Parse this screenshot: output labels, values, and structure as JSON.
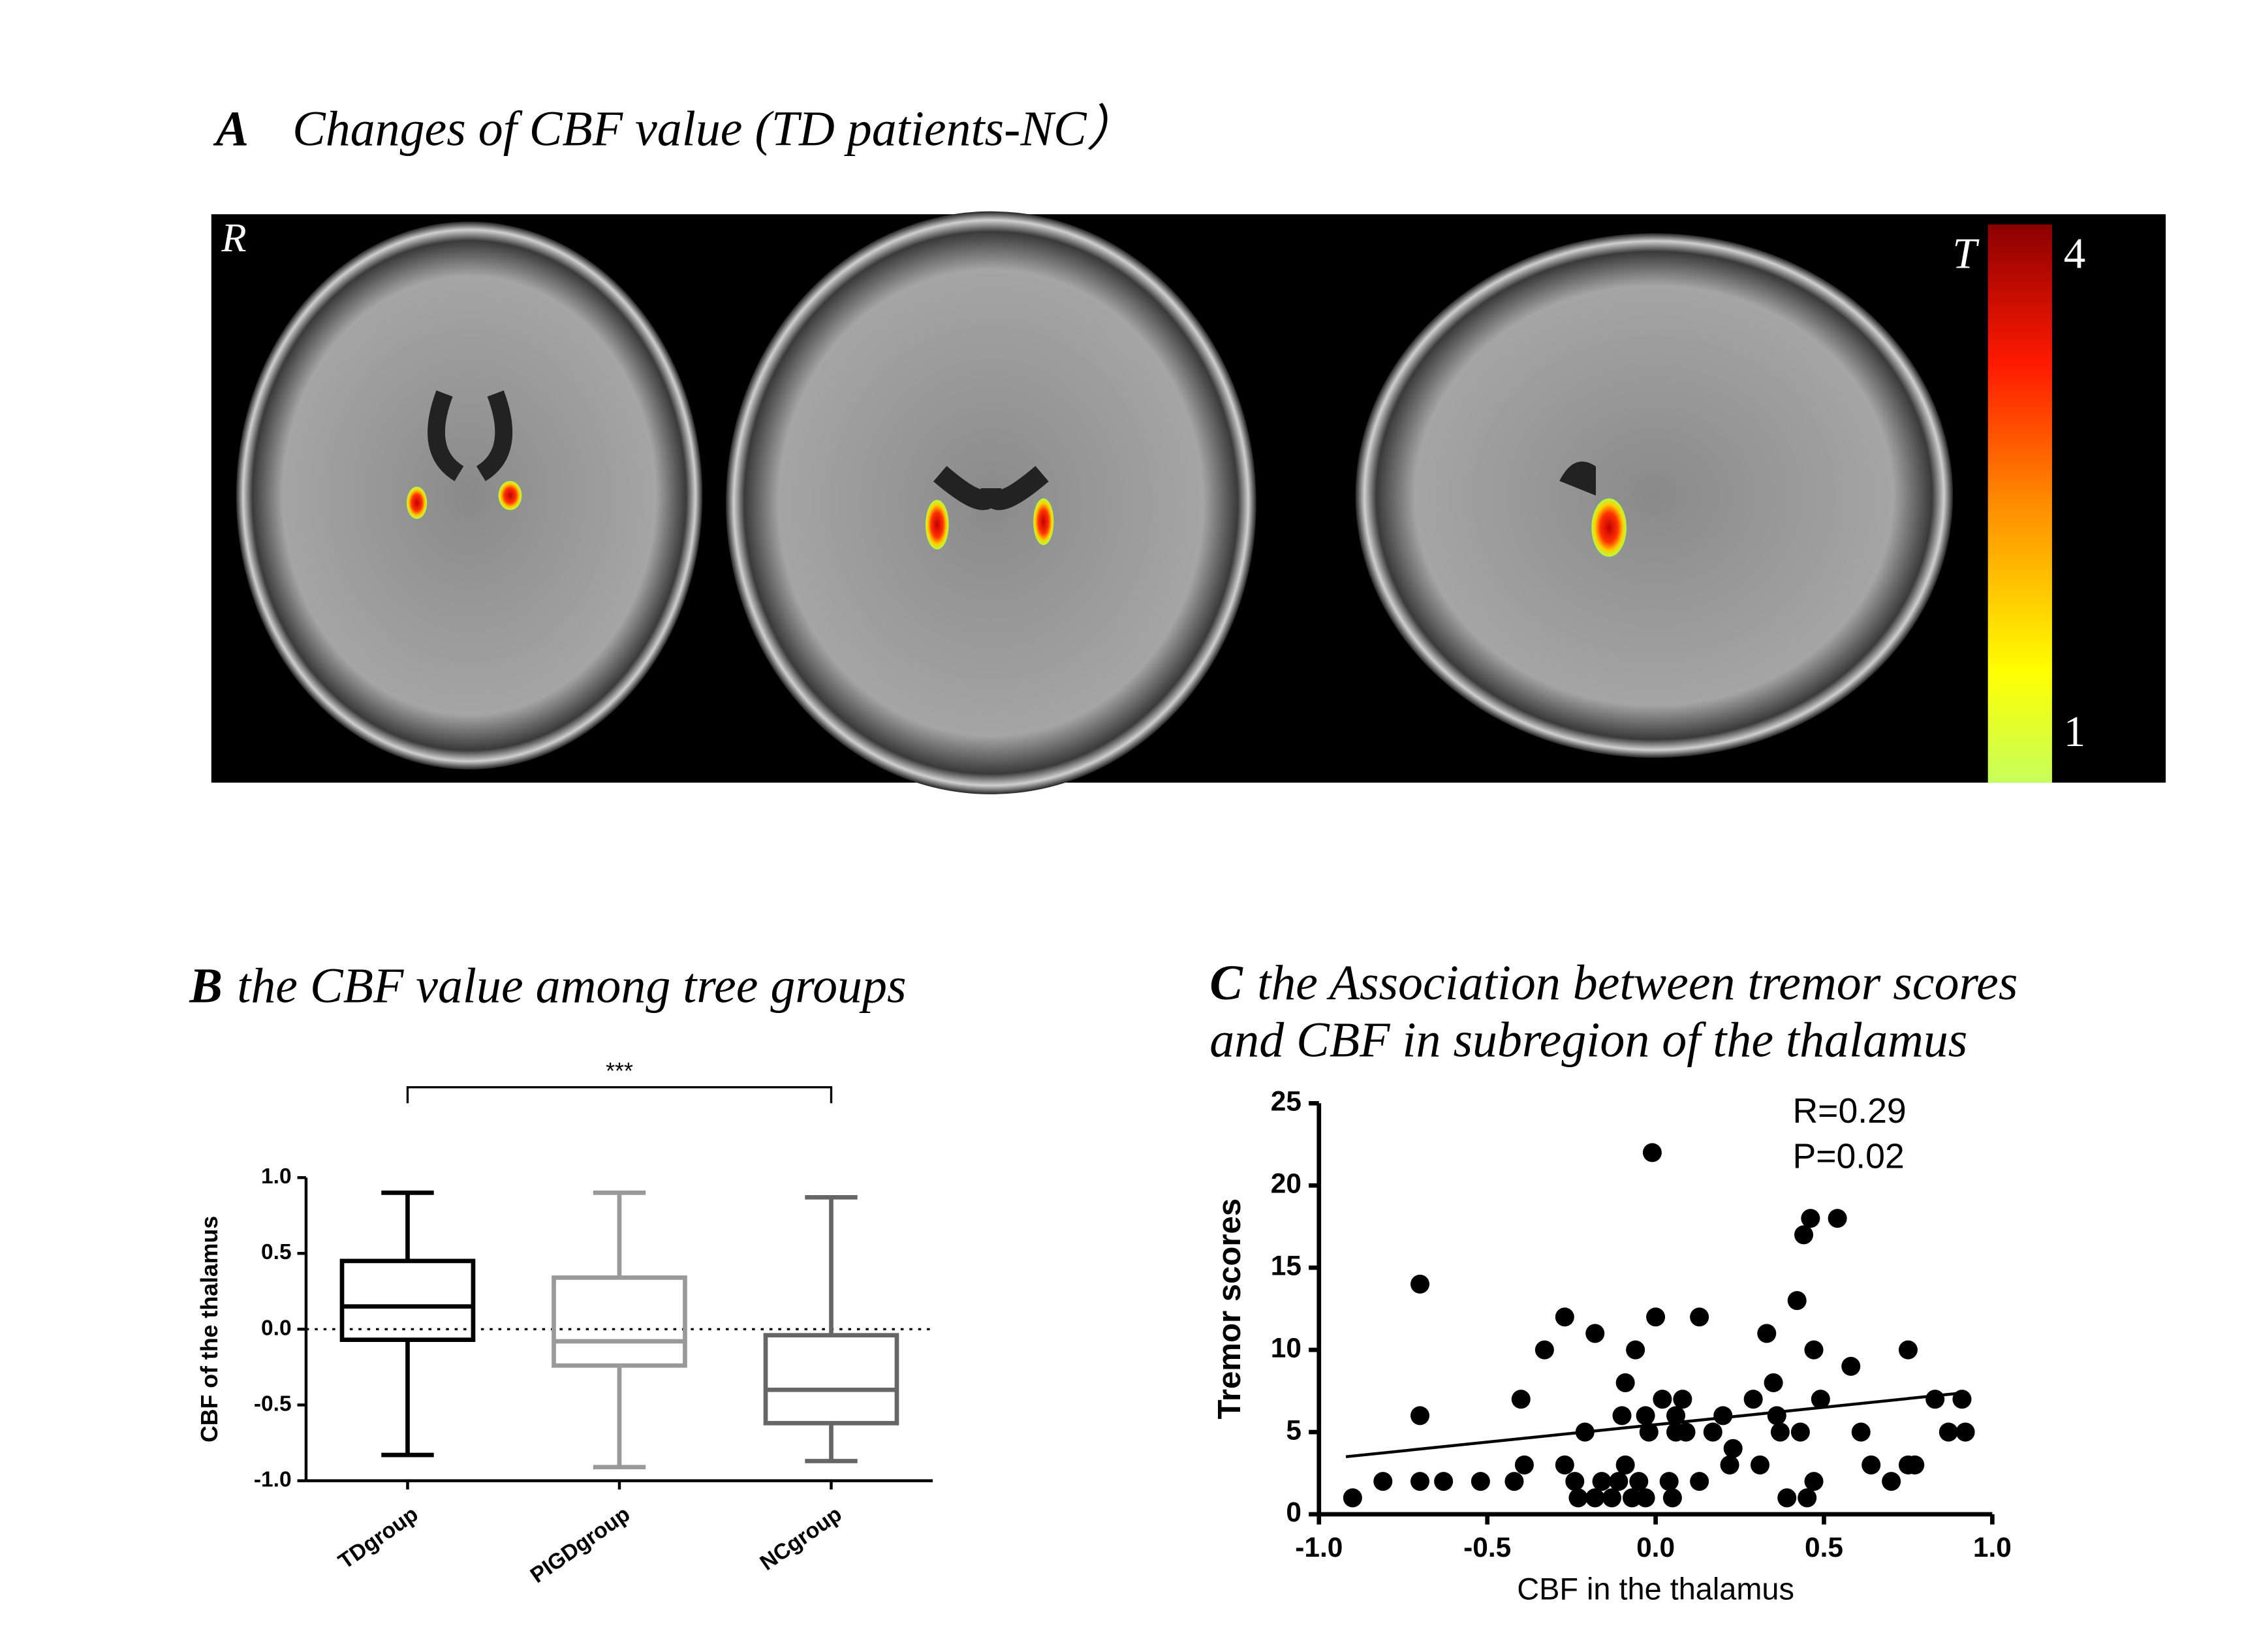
{
  "chart_data": [
    {
      "type": "image",
      "panel_label": "A",
      "title": "Changes of CBF value (TD patients-NC）",
      "orientation": "R",
      "colorbar": {
        "label": "T",
        "lim": [
          1,
          4
        ],
        "ticks": [
          1,
          4
        ]
      }
    },
    {
      "type": "box",
      "panel_label": "B",
      "title": "the CBF value among tree groups",
      "ylabel": "CBF of the thalamus",
      "categories": [
        "TDgroup",
        "PIGDgroup",
        "NCgroup"
      ],
      "colors": [
        "#000000",
        "#999999",
        "#666666"
      ],
      "min": [
        -0.83,
        -0.91,
        -0.87
      ],
      "q1": [
        -0.07,
        -0.24,
        -0.62
      ],
      "median": [
        0.15,
        -0.08,
        -0.4
      ],
      "q3": [
        0.45,
        0.34,
        -0.04
      ],
      "max": [
        0.9,
        0.9,
        0.87
      ],
      "ylim": [
        -1,
        1
      ],
      "yticks": [
        {
          "value": 1,
          "label": "1.0"
        },
        0.5,
        {
          "value": 0,
          "label": "0.0"
        },
        -0.5,
        {
          "value": -1,
          "label": "-1.0"
        }
      ],
      "reference_line": 0,
      "significance": "***"
    },
    {
      "type": "scatter",
      "panel_label": "C",
      "title": [
        "the  Association between tremor scores",
        "and CBF in subregion of the thalamus"
      ],
      "xlabel": "CBF in the thalamus",
      "ylabel": "Tremor scores",
      "color": "#000000",
      "x": [
        -0.9,
        -0.81,
        -0.7,
        -0.7,
        -0.7,
        -0.63,
        -0.52,
        -0.42,
        -0.4,
        -0.39,
        -0.33,
        -0.27,
        -0.27,
        -0.24,
        -0.23,
        -0.21,
        -0.18,
        -0.18,
        -0.16,
        -0.13,
        -0.11,
        -0.1,
        -0.09,
        -0.09,
        -0.07,
        -0.06,
        -0.05,
        -0.03,
        -0.03,
        -0.02,
        -0.01,
        0,
        0.02,
        0.04,
        0.05,
        0.06,
        0.06,
        0.08,
        0.09,
        0.13,
        0.13,
        0.17,
        0.2,
        0.22,
        0.23,
        0.29,
        0.31,
        0.33,
        0.35,
        0.36,
        0.37,
        0.39,
        0.42,
        0.43,
        0.44,
        0.45,
        0.46,
        0.47,
        0.47,
        0.49,
        0.54,
        0.58,
        0.61,
        0.64,
        0.7,
        0.75,
        0.75,
        0.77,
        0.83,
        0.87,
        0.91,
        0.92
      ],
      "values": [
        1,
        2,
        14,
        6,
        2,
        2,
        2,
        2,
        7,
        3,
        10,
        12,
        3,
        2,
        1,
        5,
        11,
        1,
        2,
        1,
        2,
        6,
        8,
        3,
        1,
        10,
        2,
        6,
        1,
        5,
        22,
        12,
        7,
        2,
        1,
        6,
        5,
        7,
        5,
        12,
        2,
        5,
        6,
        3,
        4,
        7,
        3,
        11,
        8,
        6,
        5,
        1,
        13,
        5,
        17,
        1,
        18,
        10,
        2,
        7,
        18,
        9,
        5,
        3,
        2,
        10,
        3,
        3,
        7,
        5,
        7,
        5
      ],
      "fit": {
        "x": [
          -0.92,
          0.92
        ],
        "values": [
          3.5,
          7.4
        ]
      },
      "annotations": [
        "R=0.29",
        "P=0.02"
      ],
      "xlim": [
        -1,
        1
      ],
      "xticks": [
        {
          "value": -1,
          "label": "-1.0"
        },
        -0.5,
        {
          "value": 0,
          "label": "0.0"
        },
        0.5,
        {
          "value": 1,
          "label": "1.0"
        }
      ],
      "ylim": [
        0,
        25
      ],
      "yticks": [
        0,
        5,
        10,
        15,
        20,
        25
      ]
    }
  ]
}
